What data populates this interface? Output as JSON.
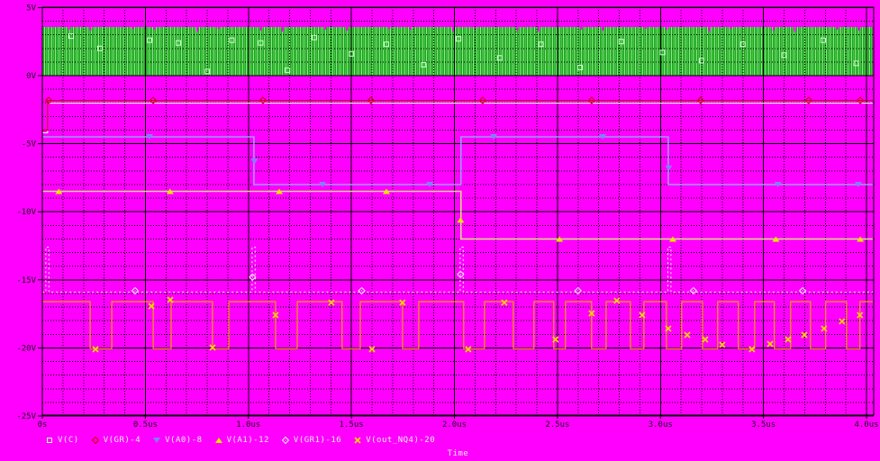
{
  "window": {
    "background_color": "#ff00ff"
  },
  "chart_data": {
    "type": "line",
    "title": "",
    "xlabel": "Time",
    "x_unit": "us",
    "x_range_us": [
      0,
      4.03
    ],
    "y_range_V": [
      -25,
      5
    ],
    "grid": {
      "x_minor_step_us": 0.1,
      "x_major_step_us": 0.5,
      "y_minor_step_V": 1,
      "y_major_step_V": 5,
      "style": "dotted-minor solid-major",
      "color": "#000000"
    },
    "x_ticks": [
      {
        "t": 0.0,
        "label": "0s"
      },
      {
        "t": 0.5,
        "label": "0.5us"
      },
      {
        "t": 1.0,
        "label": "1.0us"
      },
      {
        "t": 1.5,
        "label": "1.5us"
      },
      {
        "t": 2.0,
        "label": "2.0us"
      },
      {
        "t": 2.5,
        "label": "2.5us"
      },
      {
        "t": 3.0,
        "label": "3.0us"
      },
      {
        "t": 3.5,
        "label": "3.5us"
      },
      {
        "t": 4.0,
        "label": "4.0us"
      }
    ],
    "y_ticks": [
      {
        "v": 5,
        "label": "5V"
      },
      {
        "v": 0,
        "label": "0V"
      },
      {
        "v": -5,
        "label": "-5V"
      },
      {
        "v": -10,
        "label": "-10V"
      },
      {
        "v": -15,
        "label": "-15V"
      },
      {
        "v": -20,
        "label": "-20V"
      },
      {
        "v": -25,
        "label": "-25V"
      }
    ],
    "axis_text_color": "#141414",
    "legend_text_color": "#f0f0f0",
    "series": [
      {
        "name": "V(C)",
        "kind": "clock_band",
        "marker": "square",
        "marker_color": "#cfffcf",
        "color_dark": "#1ca41c",
        "color_light": "#8ce98c",
        "color_mid": "#4cc44c",
        "band_V": [
          0,
          3.57
        ],
        "t_range": [
          0,
          4.03
        ],
        "description": "high-frequency clock filling band 0V to 3.5V",
        "markers": [
          [
            0.14,
            2.9
          ],
          [
            0.28,
            2.0
          ],
          [
            0.52,
            2.6
          ],
          [
            0.66,
            2.4
          ],
          [
            0.8,
            0.3
          ],
          [
            0.92,
            2.6
          ],
          [
            1.06,
            2.4
          ],
          [
            1.19,
            0.4
          ],
          [
            1.32,
            2.8
          ],
          [
            1.5,
            1.6
          ],
          [
            1.67,
            2.3
          ],
          [
            1.85,
            0.8
          ],
          [
            2.02,
            2.7
          ],
          [
            2.22,
            1.3
          ],
          [
            2.42,
            2.3
          ],
          [
            2.61,
            0.6
          ],
          [
            2.81,
            2.5
          ],
          [
            3.01,
            1.7
          ],
          [
            3.2,
            1.1
          ],
          [
            3.4,
            2.3
          ],
          [
            3.6,
            1.5
          ],
          [
            3.79,
            2.6
          ],
          [
            3.95,
            0.9
          ]
        ]
      },
      {
        "name": "V(GR)-4",
        "kind": "step",
        "color": "#b40000",
        "underline_color": "#ffffff",
        "width": 1,
        "marker": "diamond",
        "marker_color": "#d00000",
        "segments": [
          [
            0,
            0.026,
            -4.0
          ],
          [
            0.026,
            4.03,
            -1.82
          ]
        ],
        "markers": [
          [
            0.031,
            -1.82
          ],
          [
            0.538,
            -1.82
          ],
          [
            1.071,
            -1.82
          ],
          [
            1.595,
            -1.82
          ],
          [
            2.137,
            -1.82
          ],
          [
            2.666,
            -1.82
          ],
          [
            3.195,
            -1.82
          ],
          [
            3.719,
            -1.82
          ],
          [
            3.97,
            -1.82
          ]
        ]
      },
      {
        "name": "V(A0)-8",
        "kind": "step",
        "color": "#9a9aff",
        "width": 1.6,
        "marker": "triangle-down",
        "marker_color": "#8080ff",
        "segments": [
          [
            0,
            1.027,
            -4.5
          ],
          [
            1.027,
            2.032,
            -8
          ],
          [
            2.032,
            3.038,
            -4.5
          ],
          [
            3.038,
            4.03,
            -8
          ]
        ],
        "markers": [
          [
            0.52,
            -4.5
          ],
          [
            1.03,
            -6.3
          ],
          [
            1.36,
            -8
          ],
          [
            1.88,
            -8
          ],
          [
            2.19,
            -4.5
          ],
          [
            2.72,
            -4.5
          ],
          [
            3.04,
            -6.8
          ],
          [
            3.57,
            -8
          ],
          [
            3.96,
            -8
          ]
        ]
      },
      {
        "name": "V(A1)-12",
        "kind": "step",
        "color": "#d6d68c",
        "width": 1.6,
        "marker": "triangle-up",
        "marker_color": "#e6e600",
        "segments": [
          [
            0,
            2.032,
            -8.5
          ],
          [
            2.032,
            4.03,
            -12
          ]
        ],
        "markers": [
          [
            0.08,
            -8.5
          ],
          [
            0.62,
            -8.5
          ],
          [
            1.15,
            -8.5
          ],
          [
            1.67,
            -8.5
          ],
          [
            2.03,
            -10.6
          ],
          [
            2.51,
            -12
          ],
          [
            3.06,
            -12
          ],
          [
            3.56,
            -12
          ],
          [
            3.97,
            -12
          ]
        ]
      },
      {
        "name": "V(GR1)-16",
        "kind": "step",
        "color": "#ffffff",
        "width": 1,
        "dash": "2,3",
        "marker": "diamond-open",
        "marker_color": "#f0f0f0",
        "segments": [
          [
            0,
            0.017,
            -15.9
          ],
          [
            0.017,
            0.032,
            -12.6
          ],
          [
            0.032,
            1.018,
            -15.9
          ],
          [
            1.018,
            1.033,
            -12.6
          ],
          [
            1.033,
            2.028,
            -15.9
          ],
          [
            2.028,
            2.043,
            -12.6
          ],
          [
            2.043,
            3.036,
            -15.9
          ],
          [
            3.036,
            3.051,
            -12.6
          ],
          [
            3.051,
            4.03,
            -15.9
          ]
        ],
        "markers": [
          [
            0.45,
            -15.8
          ],
          [
            1.02,
            -14.8
          ],
          [
            1.55,
            -15.8
          ],
          [
            2.03,
            -14.6
          ],
          [
            2.6,
            -15.8
          ],
          [
            3.16,
            -15.8
          ],
          [
            3.69,
            -15.8
          ]
        ]
      },
      {
        "name": "V(out_NQ4)-20",
        "kind": "step",
        "color": "#f0a000",
        "width": 1.2,
        "marker": "x-cross",
        "marker_color": "#ffd700",
        "segments": [
          [
            0,
            0.232,
            -16.6
          ],
          [
            0.232,
            0.337,
            -20.05
          ],
          [
            0.337,
            0.538,
            -16.6
          ],
          [
            0.538,
            0.625,
            -20.05
          ],
          [
            0.625,
            0.826,
            -16.6
          ],
          [
            0.826,
            0.905,
            -20.05
          ],
          [
            0.905,
            1.132,
            -16.6
          ],
          [
            1.132,
            1.237,
            -20.05
          ],
          [
            1.237,
            1.455,
            -16.6
          ],
          [
            1.455,
            1.543,
            -20.05
          ],
          [
            1.543,
            1.748,
            -16.6
          ],
          [
            1.748,
            1.827,
            -20.05
          ],
          [
            1.827,
            2.045,
            -16.6
          ],
          [
            2.045,
            2.146,
            -20.05
          ],
          [
            2.146,
            2.286,
            -16.6
          ],
          [
            2.286,
            2.386,
            -20.05
          ],
          [
            2.386,
            2.482,
            -16.6
          ],
          [
            2.482,
            2.539,
            -20.05
          ],
          [
            2.539,
            2.666,
            -16.6
          ],
          [
            2.666,
            2.736,
            -20.05
          ],
          [
            2.736,
            2.854,
            -16.6
          ],
          [
            2.854,
            2.92,
            -20.05
          ],
          [
            2.92,
            3.029,
            -16.6
          ],
          [
            3.029,
            3.103,
            -20.05
          ],
          [
            3.103,
            3.204,
            -16.6
          ],
          [
            3.204,
            3.278,
            -20.05
          ],
          [
            3.278,
            3.378,
            -16.6
          ],
          [
            3.378,
            3.457,
            -20.05
          ],
          [
            3.457,
            3.553,
            -16.6
          ],
          [
            3.553,
            3.632,
            -20.05
          ],
          [
            3.632,
            3.728,
            -16.6
          ],
          [
            3.728,
            3.802,
            -20.05
          ],
          [
            3.802,
            3.903,
            -16.6
          ],
          [
            3.903,
            3.968,
            -20.05
          ],
          [
            3.968,
            4.03,
            -16.6
          ]
        ],
        "markers": [
          [
            0.258,
            -20.1
          ],
          [
            0.529,
            -16.93
          ],
          [
            0.621,
            -16.47
          ],
          [
            0.826,
            -19.97
          ],
          [
            1.132,
            -17.59
          ],
          [
            1.403,
            -16.67
          ],
          [
            1.6,
            -20.1
          ],
          [
            1.748,
            -16.67
          ],
          [
            2.067,
            -20.1
          ],
          [
            2.242,
            -16.67
          ],
          [
            2.491,
            -19.38
          ],
          [
            2.666,
            -17.46
          ],
          [
            2.788,
            -16.53
          ],
          [
            2.911,
            -17.59
          ],
          [
            3.038,
            -18.58
          ],
          [
            3.13,
            -19.05
          ],
          [
            3.217,
            -19.38
          ],
          [
            3.3,
            -19.77
          ],
          [
            3.444,
            -20.1
          ],
          [
            3.532,
            -19.71
          ],
          [
            3.619,
            -19.38
          ],
          [
            3.698,
            -19.05
          ],
          [
            3.794,
            -18.58
          ],
          [
            3.881,
            -18.05
          ],
          [
            3.968,
            -17.59
          ]
        ]
      }
    ]
  }
}
